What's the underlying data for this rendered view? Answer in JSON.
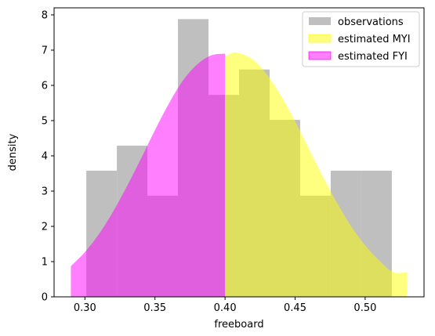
{
  "chart_data": {
    "type": "histogram-with-density",
    "xlabel": "freeboard",
    "ylabel": "density",
    "xlim": [
      0.278,
      0.542
    ],
    "ylim": [
      0,
      8.2
    ],
    "xticks": [
      "0.30",
      "0.35",
      "0.40",
      "0.45",
      "0.50"
    ],
    "xtick_values": [
      0.3,
      0.35,
      0.4,
      0.45,
      0.5
    ],
    "yticks": [
      "0",
      "1",
      "2",
      "3",
      "4",
      "5",
      "6",
      "7",
      "8"
    ],
    "ytick_values": [
      0,
      1,
      2,
      3,
      4,
      5,
      6,
      7,
      8
    ],
    "legend_placement": "top-right",
    "series": [
      {
        "name": "observations",
        "kind": "histogram",
        "color": "#bfbfbf",
        "bin_edges": [
          0.301,
          0.3228,
          0.3446,
          0.3664,
          0.3882,
          0.41,
          0.4318,
          0.4536,
          0.4754,
          0.4972,
          0.519
        ],
        "values": [
          3.58,
          4.29,
          2.87,
          7.88,
          5.73,
          6.45,
          5.02,
          2.87,
          3.58,
          3.58
        ]
      },
      {
        "name": "estimated MYI",
        "kind": "density",
        "color": "#ffff00",
        "opacity": 0.5,
        "x": [
          0.4,
          0.405,
          0.41,
          0.42,
          0.43,
          0.44,
          0.45,
          0.46,
          0.47,
          0.48,
          0.49,
          0.5,
          0.51,
          0.52,
          0.53
        ],
        "y": [
          6.82,
          6.92,
          6.92,
          6.73,
          6.3,
          5.7,
          4.98,
          4.19,
          3.4,
          2.66,
          2.0,
          1.46,
          1.03,
          0.7,
          0.7
        ]
      },
      {
        "name": "estimated FYI",
        "kind": "density",
        "color": "#ff00ff",
        "opacity": 0.5,
        "x": [
          0.29,
          0.3,
          0.31,
          0.32,
          0.33,
          0.34,
          0.35,
          0.36,
          0.37,
          0.38,
          0.39,
          0.4
        ],
        "y": [
          0.87,
          1.27,
          1.78,
          2.41,
          3.14,
          3.92,
          4.73,
          5.49,
          6.14,
          6.59,
          6.85,
          6.9
        ]
      }
    ]
  }
}
